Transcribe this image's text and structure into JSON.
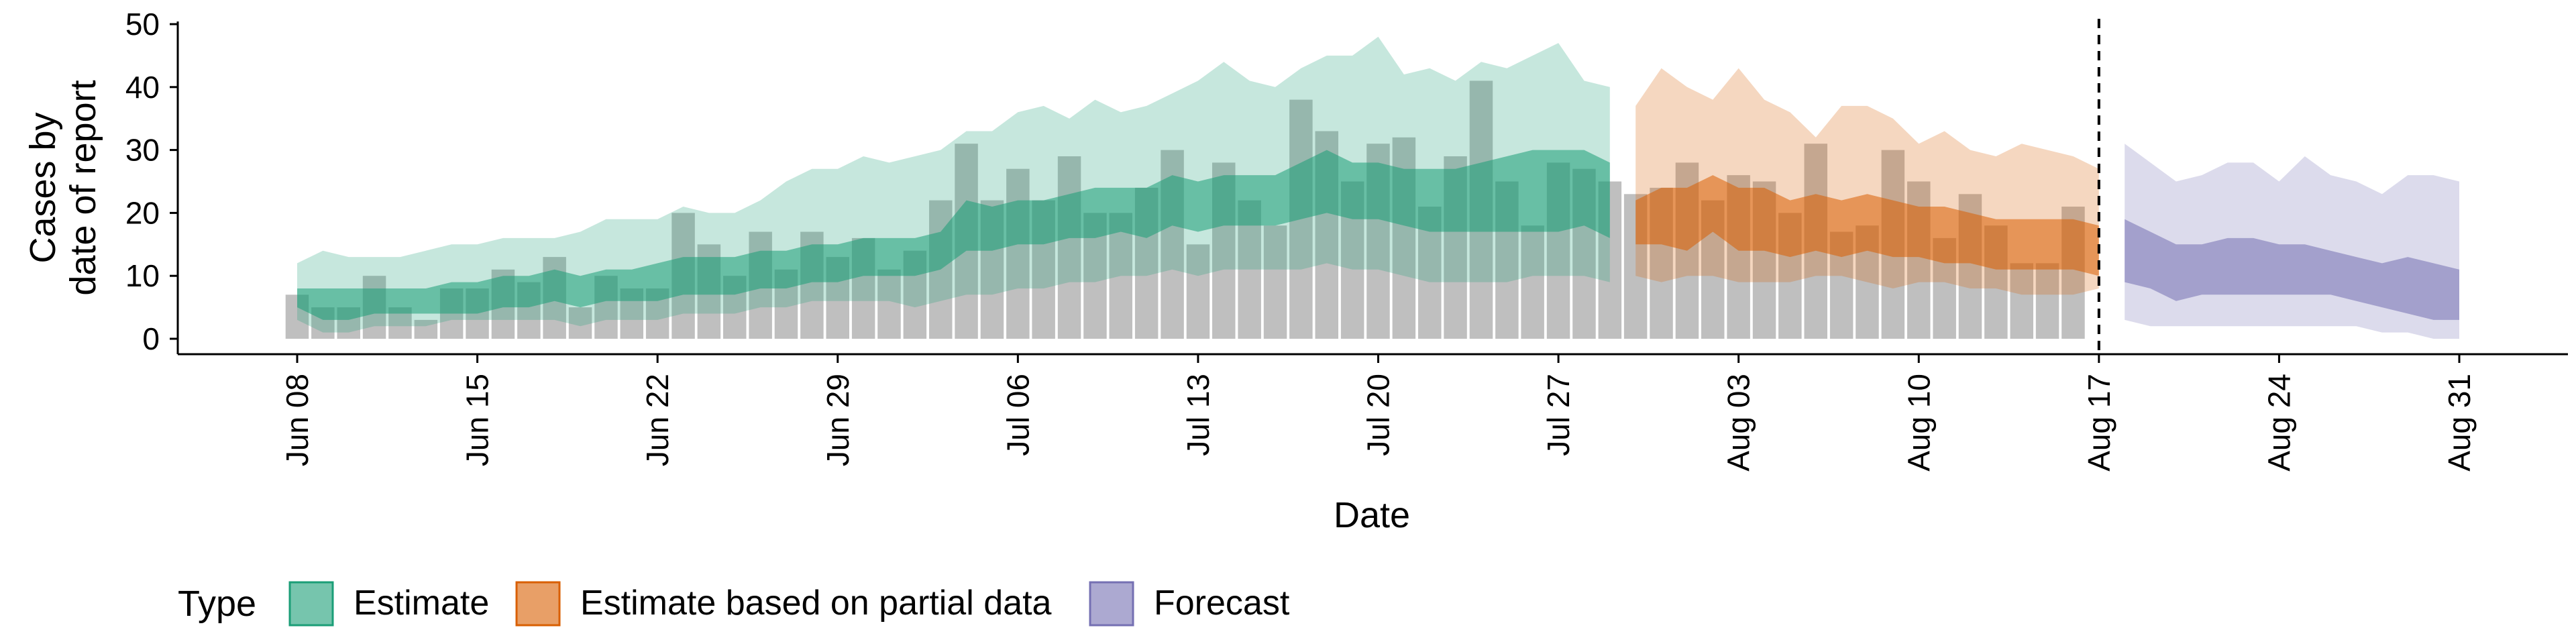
{
  "chart_data": {
    "type": "area",
    "title": "",
    "xlabel": "Date",
    "ylabel_lines": [
      "Cases by",
      "date of report"
    ],
    "ylim": [
      0,
      50
    ],
    "yticks": [
      0,
      10,
      20,
      30,
      40,
      50
    ],
    "x_start": "2020-06-08",
    "x_end": "2020-08-31",
    "xticks": [
      {
        "date": "2020-06-08",
        "label": "Jun 08"
      },
      {
        "date": "2020-06-15",
        "label": "Jun 15"
      },
      {
        "date": "2020-06-22",
        "label": "Jun 22"
      },
      {
        "date": "2020-06-29",
        "label": "Jun 29"
      },
      {
        "date": "2020-07-06",
        "label": "Jul 06"
      },
      {
        "date": "2020-07-13",
        "label": "Jul 13"
      },
      {
        "date": "2020-07-20",
        "label": "Jul 20"
      },
      {
        "date": "2020-07-27",
        "label": "Jul 27"
      },
      {
        "date": "2020-08-03",
        "label": "Aug 03"
      },
      {
        "date": "2020-08-10",
        "label": "Aug 10"
      },
      {
        "date": "2020-08-17",
        "label": "Aug 17"
      },
      {
        "date": "2020-08-24",
        "label": "Aug 24"
      },
      {
        "date": "2020-08-31",
        "label": "Aug 31"
      }
    ],
    "vline_date": "2020-08-17",
    "grid": false,
    "legend": {
      "title": "Type",
      "position": "bottom",
      "items": [
        {
          "label": "Estimate",
          "fill": "#1b9e77",
          "border": "#1b9e77"
        },
        {
          "label": "Estimate based on partial data",
          "fill": "#d95f02",
          "border": "#d95f02"
        },
        {
          "label": "Forecast",
          "fill": "#7570b3",
          "border": "#7570b3"
        }
      ]
    },
    "colors": {
      "bars": "#a9a9a9",
      "estimate": "#1b9e77",
      "partial": "#d95f02",
      "forecast": "#7570b3"
    },
    "reported_cases": {
      "start_date": "2020-06-08",
      "values": [
        7,
        5,
        5,
        10,
        5,
        3,
        8,
        8,
        11,
        9,
        13,
        5,
        10,
        8,
        8,
        20,
        15,
        10,
        17,
        11,
        17,
        13,
        16,
        11,
        14,
        22,
        31,
        22,
        27,
        22,
        29,
        20,
        20,
        24,
        30,
        15,
        28,
        22,
        18,
        38,
        33,
        25,
        31,
        32,
        21,
        29,
        41,
        25,
        18,
        28,
        27,
        25,
        23,
        24,
        28,
        22,
        26,
        25,
        20,
        31,
        17,
        18,
        30,
        25,
        16,
        23,
        18,
        12,
        12,
        21
      ]
    },
    "series": [
      {
        "type": "Estimate",
        "start_date": "2020-06-08",
        "lower90": [
          3,
          1,
          1,
          2,
          2,
          2,
          3,
          3,
          3,
          3,
          3,
          2,
          3,
          3,
          3,
          4,
          4,
          4,
          5,
          5,
          6,
          6,
          6,
          6,
          5,
          6,
          7,
          7,
          8,
          8,
          9,
          9,
          10,
          10,
          11,
          10,
          11,
          11,
          11,
          11,
          12,
          11,
          11,
          10,
          9,
          9,
          9,
          9,
          10,
          10,
          10,
          9
        ],
        "lower50": [
          5,
          3,
          3,
          4,
          4,
          4,
          4,
          4,
          5,
          5,
          6,
          5,
          6,
          6,
          6,
          7,
          7,
          7,
          8,
          8,
          9,
          9,
          10,
          10,
          10,
          11,
          14,
          14,
          15,
          15,
          16,
          16,
          17,
          16,
          18,
          17,
          18,
          18,
          18,
          19,
          20,
          19,
          19,
          18,
          17,
          17,
          17,
          17,
          17,
          17,
          18,
          16
        ],
        "upper50": [
          8,
          8,
          8,
          8,
          8,
          8,
          9,
          9,
          10,
          10,
          11,
          10,
          11,
          11,
          12,
          13,
          13,
          13,
          14,
          14,
          15,
          15,
          16,
          16,
          16,
          17,
          22,
          21,
          22,
          22,
          23,
          24,
          24,
          24,
          26,
          25,
          26,
          26,
          26,
          28,
          30,
          28,
          28,
          27,
          27,
          27,
          28,
          29,
          30,
          30,
          30,
          28
        ],
        "upper90": [
          12,
          14,
          13,
          13,
          13,
          14,
          15,
          15,
          16,
          16,
          16,
          17,
          19,
          19,
          19,
          21,
          20,
          20,
          22,
          25,
          27,
          27,
          29,
          28,
          29,
          30,
          33,
          33,
          36,
          37,
          35,
          38,
          36,
          37,
          39,
          41,
          44,
          41,
          40,
          43,
          45,
          45,
          48,
          42,
          43,
          41,
          44,
          43,
          45,
          47,
          41,
          40
        ]
      },
      {
        "type": "Estimate based on partial data",
        "start_date": "2020-07-30",
        "lower90": [
          10,
          9,
          10,
          10,
          9,
          9,
          9,
          10,
          10,
          9,
          8,
          9,
          9,
          8,
          8,
          7,
          7,
          7,
          8
        ],
        "lower50": [
          15,
          15,
          14,
          17,
          14,
          14,
          13,
          14,
          13,
          14,
          13,
          13,
          12,
          12,
          11,
          11,
          11,
          11,
          10
        ],
        "upper50": [
          22,
          24,
          24,
          26,
          24,
          24,
          22,
          23,
          22,
          23,
          22,
          21,
          21,
          20,
          19,
          19,
          19,
          19,
          18
        ],
        "upper90": [
          37,
          43,
          40,
          38,
          43,
          38,
          36,
          32,
          37,
          37,
          35,
          31,
          33,
          30,
          29,
          31,
          30,
          29,
          27
        ]
      },
      {
        "type": "Forecast",
        "start_date": "2020-08-18",
        "lower90": [
          3,
          2,
          2,
          2,
          2,
          2,
          2,
          2,
          2,
          2,
          1,
          1,
          0,
          0
        ],
        "lower50": [
          9,
          8,
          6,
          7,
          7,
          7,
          7,
          7,
          7,
          6,
          5,
          4,
          3,
          3
        ],
        "upper50": [
          19,
          17,
          15,
          15,
          16,
          16,
          15,
          15,
          14,
          13,
          12,
          13,
          12,
          11
        ],
        "upper90": [
          31,
          28,
          25,
          26,
          28,
          28,
          25,
          29,
          26,
          25,
          23,
          26,
          26,
          25
        ]
      }
    ]
  }
}
